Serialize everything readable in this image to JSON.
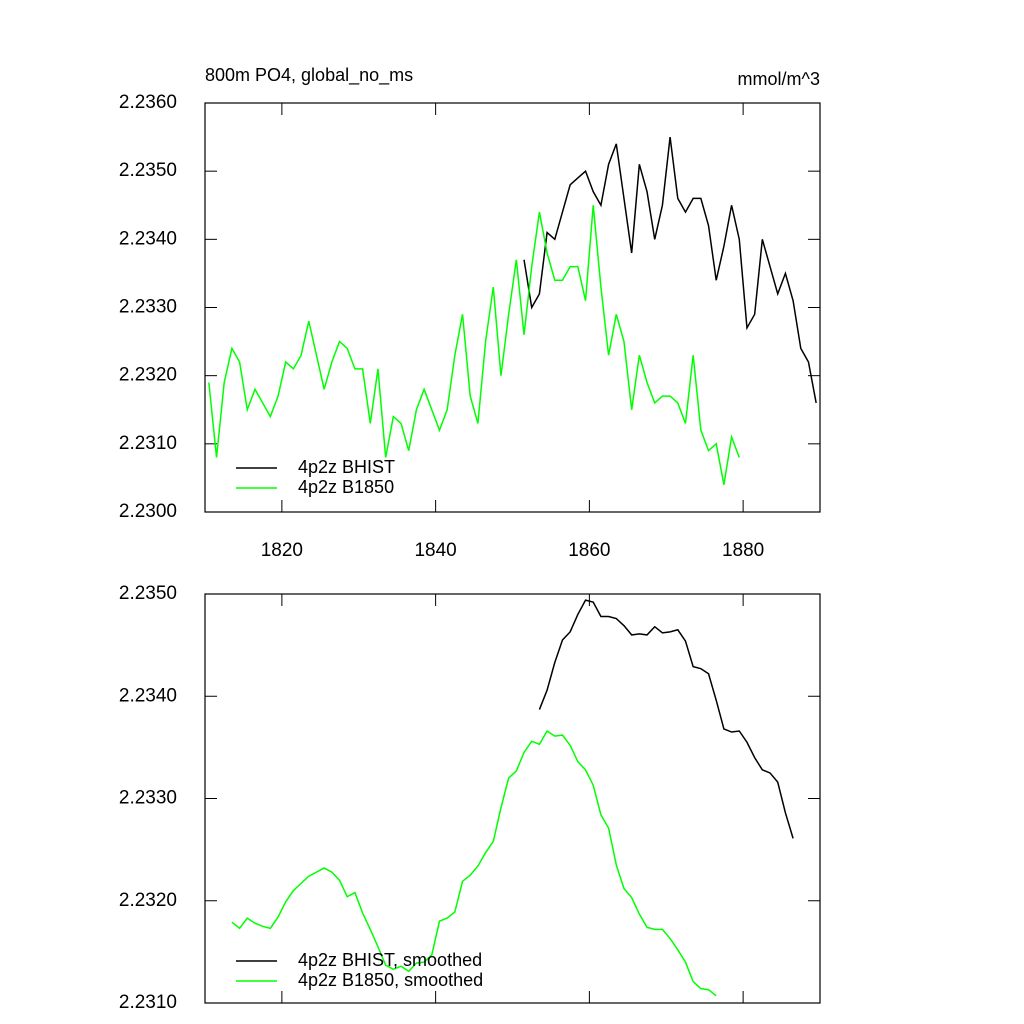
{
  "chart_data": [
    {
      "type": "line",
      "title": "800m PO4, global_no_ms",
      "units": "mmol/m^3",
      "xlim": [
        1810,
        1890
      ],
      "xticks": [
        1820,
        1840,
        1860,
        1880
      ],
      "xtick_labels": true,
      "ylim": [
        2.23,
        2.236
      ],
      "yticks": [
        {
          "value": 2.23,
          "label": "2.2300"
        },
        {
          "value": 2.231,
          "label": "2.2310"
        },
        {
          "value": 2.232,
          "label": "2.2320"
        },
        {
          "value": 2.233,
          "label": "2.2330"
        },
        {
          "value": 2.234,
          "label": "2.2340"
        },
        {
          "value": 2.235,
          "label": "2.2350"
        },
        {
          "value": 2.236,
          "label": "2.2360"
        }
      ],
      "series": [
        {
          "name": "4p2z BHIST",
          "color": "#000000",
          "x": [
            1851.5,
            1852.5,
            1853.5,
            1854.5,
            1855.5,
            1856.5,
            1857.5,
            1858.5,
            1859.5,
            1860.5,
            1861.5,
            1862.5,
            1863.5,
            1864.5,
            1865.5,
            1866.5,
            1867.5,
            1868.5,
            1869.5,
            1870.5,
            1871.5,
            1872.5,
            1873.5,
            1874.5,
            1875.5,
            1876.5,
            1877.5,
            1878.5,
            1879.5,
            1880.5,
            1881.5,
            1882.5,
            1883.5,
            1884.5,
            1885.5,
            1886.5,
            1887.5,
            1888.5,
            1889.5
          ],
          "values": [
            2.2337,
            2.233,
            2.2332,
            2.2341,
            2.234,
            2.2344,
            2.2348,
            2.2349,
            2.235,
            2.2347,
            2.2345,
            2.2351,
            2.2354,
            2.2346,
            2.2338,
            2.2351,
            2.2347,
            2.234,
            2.2345,
            2.2355,
            2.2346,
            2.2344,
            2.2346,
            2.2346,
            2.2342,
            2.2334,
            2.2339,
            2.2345,
            2.234,
            2.2327,
            2.2329,
            2.234,
            2.2336,
            2.2332,
            2.2335,
            2.2331,
            2.2324,
            2.2322,
            2.2316
          ]
        },
        {
          "name": "4p2z B1850",
          "color": "#00ff00",
          "x": [
            1810.5,
            1811.5,
            1812.5,
            1813.5,
            1814.5,
            1815.5,
            1816.5,
            1817.5,
            1818.5,
            1819.5,
            1820.5,
            1821.5,
            1822.5,
            1823.5,
            1824.5,
            1825.5,
            1826.5,
            1827.5,
            1828.5,
            1829.5,
            1830.5,
            1831.5,
            1832.5,
            1833.5,
            1834.5,
            1835.5,
            1836.5,
            1837.5,
            1838.5,
            1839.5,
            1840.5,
            1841.5,
            1842.5,
            1843.5,
            1844.5,
            1845.5,
            1846.5,
            1847.5,
            1848.5,
            1849.5,
            1850.5,
            1851.5,
            1852.5,
            1853.5,
            1854.5,
            1855.5,
            1856.5,
            1857.5,
            1858.5,
            1859.5,
            1860.5,
            1861.5,
            1862.5,
            1863.5,
            1864.5,
            1865.5,
            1866.5,
            1867.5,
            1868.5,
            1869.5,
            1870.5,
            1871.5,
            1872.5,
            1873.5,
            1874.5,
            1875.5,
            1876.5,
            1877.5,
            1878.5,
            1879.5
          ],
          "values": [
            2.2319,
            2.2308,
            2.2319,
            2.2324,
            2.2322,
            2.2315,
            2.2318,
            2.2316,
            2.2314,
            2.2317,
            2.2322,
            2.2321,
            2.2323,
            2.2328,
            2.2323,
            2.2318,
            2.2322,
            2.2325,
            2.2324,
            2.2321,
            2.2321,
            2.2313,
            2.2321,
            2.2308,
            2.2314,
            2.2313,
            2.2309,
            2.2315,
            2.2318,
            2.2315,
            2.2312,
            2.2315,
            2.2323,
            2.2329,
            2.2317,
            2.2313,
            2.2325,
            2.2333,
            2.232,
            2.2329,
            2.2337,
            2.2326,
            2.2336,
            2.2344,
            2.2338,
            2.2334,
            2.2334,
            2.2336,
            2.2336,
            2.2331,
            2.2345,
            2.2333,
            2.2323,
            2.2329,
            2.2325,
            2.2315,
            2.2323,
            2.2319,
            2.2316,
            2.2317,
            2.2317,
            2.2316,
            2.2313,
            2.2323,
            2.2312,
            2.2309,
            2.231,
            2.2304,
            2.2311,
            2.2308
          ]
        }
      ]
    },
    {
      "type": "line",
      "xlim": [
        1810,
        1890
      ],
      "xticks": [
        1820,
        1840,
        1860,
        1880
      ],
      "xtick_labels": false,
      "ylim": [
        2.231,
        2.235
      ],
      "yticks": [
        {
          "value": 2.231,
          "label": "2.2310"
        },
        {
          "value": 2.232,
          "label": "2.2320"
        },
        {
          "value": 2.233,
          "label": "2.2330"
        },
        {
          "value": 2.234,
          "label": "2.2340"
        },
        {
          "value": 2.235,
          "label": "2.2350"
        }
      ],
      "series": [
        {
          "name": "4p2z BHIST, smoothed",
          "color": "#000000",
          "x": [
            1853.5,
            1854.5,
            1855.5,
            1856.5,
            1857.5,
            1858.5,
            1859.5,
            1860.5,
            1861.5,
            1862.5,
            1863.5,
            1864.5,
            1865.5,
            1866.5,
            1867.5,
            1868.5,
            1869.5,
            1870.5,
            1871.5,
            1872.5,
            1873.5,
            1874.5,
            1875.5,
            1876.5,
            1877.5,
            1878.5,
            1879.5,
            1880.5,
            1881.5,
            1882.5,
            1883.5,
            1884.5,
            1885.5,
            1886.5
          ],
          "values": [
            2.23387,
            2.23406,
            2.23433,
            2.23455,
            2.23463,
            2.2348,
            2.23494,
            2.23492,
            2.23478,
            2.23478,
            2.23476,
            2.23469,
            2.2346,
            2.23461,
            2.2346,
            2.23468,
            2.23462,
            2.23463,
            2.23465,
            2.23454,
            2.23429,
            2.23427,
            2.23422,
            2.23396,
            2.23368,
            2.23365,
            2.23366,
            2.23355,
            2.2334,
            2.23328,
            2.23325,
            2.23316,
            2.23286,
            2.23261
          ]
        },
        {
          "name": "4p2z B1850, smoothed",
          "color": "#00ff00",
          "x": [
            1813.5,
            1814.5,
            1815.5,
            1816.5,
            1817.5,
            1818.5,
            1819.5,
            1820.5,
            1821.5,
            1822.5,
            1823.5,
            1824.5,
            1825.5,
            1826.5,
            1827.5,
            1828.5,
            1829.5,
            1830.5,
            1831.5,
            1832.5,
            1833.5,
            1834.5,
            1835.5,
            1836.5,
            1837.5,
            1838.5,
            1839.5,
            1840.5,
            1841.5,
            1842.5,
            1843.5,
            1844.5,
            1845.5,
            1846.5,
            1847.5,
            1848.5,
            1849.5,
            1850.5,
            1851.5,
            1852.5,
            1853.5,
            1854.5,
            1855.5,
            1856.5,
            1857.5,
            1858.5,
            1859.5,
            1860.5,
            1861.5,
            1862.5,
            1863.5,
            1864.5,
            1865.5,
            1866.5,
            1867.5,
            1868.5,
            1869.5,
            1870.5,
            1871.5,
            1872.5,
            1873.5,
            1874.5,
            1875.5,
            1876.5
          ],
          "values": [
            2.23179,
            2.23173,
            2.23183,
            2.23178,
            2.23175,
            2.23173,
            2.23184,
            2.23199,
            2.2321,
            2.23217,
            2.23224,
            2.23228,
            2.23232,
            2.23228,
            2.2322,
            2.23204,
            2.23208,
            2.23188,
            2.23172,
            2.23155,
            2.23137,
            2.23133,
            2.23136,
            2.23131,
            2.23139,
            2.2314,
            2.23147,
            2.2318,
            2.23183,
            2.23189,
            2.23219,
            2.23225,
            2.23234,
            2.23247,
            2.23258,
            2.23291,
            2.2332,
            2.23327,
            2.23345,
            2.23356,
            2.23353,
            2.23366,
            2.23361,
            2.23362,
            2.23352,
            2.23336,
            2.23328,
            2.23313,
            2.23284,
            2.23271,
            2.23235,
            2.23212,
            2.23203,
            2.23187,
            2.23174,
            2.23172,
            2.23172,
            2.23163,
            2.23152,
            2.2314,
            2.23121,
            2.23114,
            2.23113,
            2.23107
          ]
        }
      ]
    }
  ]
}
